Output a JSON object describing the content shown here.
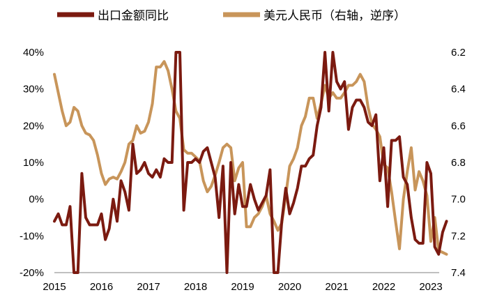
{
  "chart_data": {
    "type": "line",
    "title": "",
    "xlabel": "",
    "ylabel": "",
    "legend_position": "top",
    "grid": false,
    "x_ticks": [
      "2015",
      "2016",
      "2017",
      "2018",
      "2019",
      "2020",
      "2021",
      "2022",
      "2023"
    ],
    "y_left": {
      "range": [
        -20,
        40
      ],
      "ticks": [
        "40%",
        "30%",
        "20%",
        "10%",
        "0%",
        "-10%",
        "-20%"
      ]
    },
    "y_right": {
      "range": [
        6.2,
        7.4
      ],
      "inverted": true,
      "ticks": [
        "6.2",
        "6.4",
        "6.6",
        "6.8",
        "7.0",
        "7.2",
        "7.4"
      ]
    },
    "series": [
      {
        "name": "出口金额同比",
        "axis": "left",
        "color": "#7B1A10",
        "x_start": 2015.0,
        "x_step": 0.08333,
        "values": [
          -6,
          -4,
          -7,
          -7,
          -2,
          -20,
          -20,
          7,
          -5,
          -7,
          -7,
          -7,
          -4,
          -11,
          -8,
          0,
          -6,
          5,
          2,
          -3,
          15,
          7,
          8,
          10,
          7,
          6,
          8,
          6,
          11,
          10,
          10,
          40,
          40,
          -3,
          10,
          10,
          11,
          10,
          13,
          14,
          10,
          6,
          -5,
          9,
          -20,
          10,
          -4,
          4,
          -2,
          -2,
          4,
          0,
          -3,
          -1,
          1,
          8,
          -20,
          -20,
          -6,
          3,
          -4,
          -1,
          3,
          9,
          9,
          11,
          12,
          20,
          25,
          40,
          24,
          40,
          32,
          30,
          32,
          19,
          25,
          27,
          27,
          25,
          21,
          20,
          23,
          5,
          14,
          -2,
          16,
          16,
          17,
          6,
          4,
          -5,
          -11,
          -12,
          -12,
          10,
          7,
          -13,
          -15,
          -9,
          -6
        ]
      },
      {
        "name": "美元人民币（右轴，逆序）",
        "axis": "right",
        "color": "#C8955A",
        "x_start": 2015.0,
        "x_step": 0.08333,
        "values": [
          6.32,
          6.42,
          6.52,
          6.6,
          6.58,
          6.5,
          6.52,
          6.6,
          6.64,
          6.65,
          6.68,
          6.76,
          6.86,
          6.92,
          6.89,
          6.88,
          6.89,
          6.85,
          6.8,
          6.7,
          6.68,
          6.6,
          6.64,
          6.63,
          6.58,
          6.48,
          6.28,
          6.28,
          6.25,
          6.3,
          6.4,
          6.52,
          6.56,
          6.73,
          6.75,
          6.75,
          6.77,
          6.79,
          6.9,
          6.96,
          6.93,
          6.87,
          6.8,
          6.72,
          6.7,
          6.72,
          6.9,
          6.83,
          6.8,
          7.15,
          7.15,
          7.1,
          7.08,
          7.04,
          6.98,
          7.08,
          7.12,
          7.17,
          7.13,
          6.98,
          6.82,
          6.78,
          6.72,
          6.6,
          6.55,
          6.45,
          6.45,
          6.56,
          6.48,
          6.38,
          6.45,
          6.42,
          6.45,
          6.45,
          6.42,
          6.38,
          6.38,
          6.36,
          6.32,
          6.36,
          6.5,
          6.59,
          6.62,
          6.66,
          6.81,
          6.83,
          6.96,
          7.12,
          7.27,
          7.0,
          6.85,
          6.72,
          6.95,
          6.85,
          6.9,
          6.98,
          7.23,
          7.1,
          7.28,
          7.29,
          7.3
        ]
      }
    ]
  }
}
